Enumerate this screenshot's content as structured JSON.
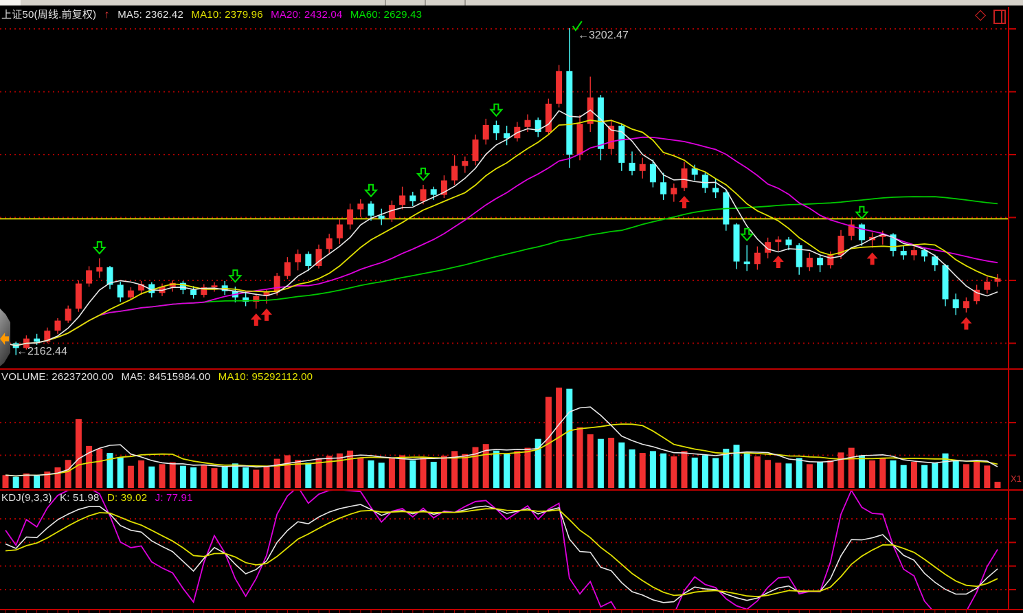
{
  "header": {
    "title": "上证50(周线.前复权)",
    "trend_arrow": "↑",
    "ma5": "MA5: 2362.42",
    "ma10": "MA10: 2379.96",
    "ma20": "MA20: 2432.04",
    "ma60": "MA60: 2629.43"
  },
  "window_icons": {
    "diamond": "◇"
  },
  "price_pane": {
    "peak_label": "←3202.47",
    "low_label": "←2162.44"
  },
  "volume_pane": {
    "volume": "VOLUME: 26237200.00",
    "ma5": "MA5: 84515984.00",
    "ma10": "MA10: 95292112.00"
  },
  "kdj_pane": {
    "formula": "KDJ(9,3,3)",
    "k": "K: 51.98",
    "d": "D: 39.02",
    "j": "J: 77.91"
  },
  "right_axis": {
    "label": "X1"
  },
  "colors": {
    "up": "#f03030",
    "down": "#4dffff",
    "ma5": "#e8e8e8",
    "ma10": "#e0e000",
    "ma20": "#dd00dd",
    "ma60": "#00c800",
    "grid": "#a80000",
    "frame": "#c00000",
    "ref_line": "#d0d000",
    "label": "#cfcfcf",
    "marker_green": "#00dd00",
    "marker_red": "#e82020"
  },
  "chart_data": {
    "type": "candlestick",
    "title": "上证50(周线.前复权)",
    "panes": [
      "price",
      "volume",
      "kdj"
    ],
    "price_axis": {
      "gridline_prices": [
        3200,
        3000,
        2800,
        2600,
        2400,
        2200
      ],
      "ref_line_price": 2596,
      "peak": {
        "index": 54,
        "price": 3202.47
      },
      "low": {
        "index": 1,
        "price": 2162.44
      }
    },
    "volume_axis": {
      "gridline_values": [
        280000000,
        140000000
      ],
      "max": 430000000
    },
    "kdj_axis": {
      "gridline_values": [
        80,
        60,
        40,
        20
      ]
    },
    "indicators": {
      "price_ma_periods": [
        5,
        10,
        20,
        60
      ],
      "volume_ma_periods": [
        5,
        10
      ],
      "kdj_params": [
        9,
        3,
        3
      ]
    },
    "readouts": {
      "ma5": 2362.42,
      "ma10": 2379.96,
      "ma20": 2432.04,
      "ma60": 2629.43,
      "volume": 26237200.0,
      "vol_ma5": 84515984.0,
      "vol_ma10": 95292112.0,
      "k": 51.98,
      "d": 39.02,
      "j": 77.91
    },
    "markers": {
      "sell_arrows_down_green": [
        9,
        22,
        35,
        40,
        47,
        71,
        82
      ],
      "buy_arrows_up_red": [
        24,
        25,
        65,
        74,
        83,
        92
      ],
      "peak_check_index": 54
    },
    "candles": [
      [
        2185,
        2210,
        2168,
        2200
      ],
      [
        2200,
        2205,
        2162.44,
        2185
      ],
      [
        2185,
        2225,
        2180,
        2215
      ],
      [
        2215,
        2230,
        2195,
        2205
      ],
      [
        2205,
        2250,
        2200,
        2240
      ],
      [
        2240,
        2280,
        2230,
        2272
      ],
      [
        2272,
        2320,
        2265,
        2310
      ],
      [
        2310,
        2400,
        2300,
        2390
      ],
      [
        2390,
        2445,
        2380,
        2432
      ],
      [
        2428,
        2470,
        2408,
        2442
      ],
      [
        2442,
        2446,
        2372,
        2386
      ],
      [
        2386,
        2396,
        2332,
        2346
      ],
      [
        2346,
        2378,
        2338,
        2368
      ],
      [
        2368,
        2398,
        2354,
        2388
      ],
      [
        2388,
        2394,
        2346,
        2360
      ],
      [
        2360,
        2390,
        2350,
        2380
      ],
      [
        2380,
        2400,
        2364,
        2392
      ],
      [
        2392,
        2398,
        2356,
        2370
      ],
      [
        2370,
        2382,
        2342,
        2354
      ],
      [
        2354,
        2388,
        2346,
        2378
      ],
      [
        2378,
        2394,
        2364,
        2384
      ],
      [
        2384,
        2398,
        2354,
        2366
      ],
      [
        2366,
        2380,
        2330,
        2346
      ],
      [
        2346,
        2366,
        2318,
        2332
      ],
      [
        2332,
        2358,
        2310,
        2350
      ],
      [
        2350,
        2370,
        2326,
        2362
      ],
      [
        2362,
        2424,
        2352,
        2414
      ],
      [
        2414,
        2474,
        2404,
        2458
      ],
      [
        2458,
        2498,
        2432,
        2484
      ],
      [
        2484,
        2492,
        2430,
        2446
      ],
      [
        2446,
        2514,
        2438,
        2500
      ],
      [
        2500,
        2548,
        2482,
        2534
      ],
      [
        2534,
        2594,
        2516,
        2578
      ],
      [
        2578,
        2644,
        2562,
        2626
      ],
      [
        2626,
        2658,
        2602,
        2644
      ],
      [
        2644,
        2652,
        2590,
        2606
      ],
      [
        2606,
        2628,
        2576,
        2596
      ],
      [
        2596,
        2654,
        2586,
        2640
      ],
      [
        2640,
        2698,
        2626,
        2670
      ],
      [
        2670,
        2682,
        2636,
        2652
      ],
      [
        2652,
        2704,
        2642,
        2690
      ],
      [
        2690,
        2698,
        2656,
        2672
      ],
      [
        2672,
        2734,
        2662,
        2718
      ],
      [
        2718,
        2798,
        2704,
        2764
      ],
      [
        2764,
        2794,
        2742,
        2780
      ],
      [
        2780,
        2864,
        2766,
        2848
      ],
      [
        2848,
        2914,
        2832,
        2894
      ],
      [
        2894,
        2908,
        2846,
        2868
      ],
      [
        2868,
        2892,
        2830,
        2852
      ],
      [
        2852,
        2904,
        2842,
        2888
      ],
      [
        2888,
        2928,
        2872,
        2910
      ],
      [
        2910,
        2918,
        2856,
        2872
      ],
      [
        2872,
        2978,
        2862,
        2962
      ],
      [
        2962,
        3085,
        2950,
        3066
      ],
      [
        3066,
        3202.47,
        2758,
        2800
      ],
      [
        2800,
        2926,
        2782,
        2898
      ],
      [
        2898,
        3048,
        2872,
        2982
      ],
      [
        2982,
        2990,
        2782,
        2818
      ],
      [
        2818,
        2912,
        2802,
        2892
      ],
      [
        2892,
        2900,
        2748,
        2774
      ],
      [
        2774,
        2810,
        2734,
        2748
      ],
      [
        2748,
        2790,
        2724,
        2770
      ],
      [
        2770,
        2784,
        2696,
        2712
      ],
      [
        2712,
        2742,
        2656,
        2674
      ],
      [
        2674,
        2708,
        2650,
        2694
      ],
      [
        2694,
        2776,
        2684,
        2756
      ],
      [
        2756,
        2768,
        2718,
        2736
      ],
      [
        2736,
        2742,
        2678,
        2694
      ],
      [
        2694,
        2722,
        2662,
        2680
      ],
      [
        2680,
        2688,
        2558,
        2578
      ],
      [
        2578,
        2582,
        2436,
        2460
      ],
      [
        2460,
        2512,
        2430,
        2452
      ],
      [
        2452,
        2508,
        2434,
        2488
      ],
      [
        2488,
        2536,
        2470,
        2522
      ],
      [
        2522,
        2540,
        2494,
        2530
      ],
      [
        2530,
        2538,
        2496,
        2512
      ],
      [
        2512,
        2518,
        2418,
        2442
      ],
      [
        2442,
        2488,
        2430,
        2472
      ],
      [
        2472,
        2480,
        2426,
        2448
      ],
      [
        2448,
        2492,
        2438,
        2480
      ],
      [
        2480,
        2560,
        2468,
        2542
      ],
      [
        2542,
        2596,
        2528,
        2578
      ],
      [
        2578,
        2582,
        2510,
        2528
      ],
      [
        2528,
        2552,
        2504,
        2538
      ],
      [
        2538,
        2558,
        2514,
        2546
      ],
      [
        2546,
        2550,
        2476,
        2494
      ],
      [
        2494,
        2512,
        2466,
        2480
      ],
      [
        2480,
        2510,
        2464,
        2496
      ],
      [
        2496,
        2502,
        2460,
        2476
      ],
      [
        2476,
        2482,
        2430,
        2448
      ],
      [
        2448,
        2452,
        2318,
        2340
      ],
      [
        2340,
        2358,
        2290,
        2312
      ],
      [
        2312,
        2346,
        2298,
        2334
      ],
      [
        2334,
        2386,
        2324,
        2370
      ],
      [
        2370,
        2412,
        2358,
        2396
      ],
      [
        2396,
        2420,
        2380,
        2406
      ]
    ],
    "volumes": [
      55000000,
      48000000,
      62000000,
      52000000,
      70000000,
      88000000,
      120000000,
      295000000,
      180000000,
      168000000,
      150000000,
      132000000,
      95000000,
      118000000,
      92000000,
      102000000,
      110000000,
      95000000,
      88000000,
      98000000,
      85000000,
      92000000,
      105000000,
      88000000,
      78000000,
      95000000,
      125000000,
      140000000,
      120000000,
      108000000,
      128000000,
      138000000,
      148000000,
      160000000,
      130000000,
      118000000,
      108000000,
      128000000,
      140000000,
      118000000,
      132000000,
      112000000,
      138000000,
      158000000,
      145000000,
      175000000,
      188000000,
      160000000,
      145000000,
      158000000,
      172000000,
      210000000,
      390000000,
      430000000,
      425000000,
      260000000,
      230000000,
      210000000,
      215000000,
      195000000,
      165000000,
      150000000,
      158000000,
      148000000,
      135000000,
      158000000,
      130000000,
      140000000,
      128000000,
      168000000,
      185000000,
      150000000,
      135000000,
      120000000,
      108000000,
      105000000,
      128000000,
      102000000,
      112000000,
      118000000,
      152000000,
      172000000,
      140000000,
      118000000,
      128000000,
      118000000,
      98000000,
      112000000,
      98000000,
      108000000,
      148000000,
      118000000,
      102000000,
      112000000,
      96000000,
      26237200
    ]
  }
}
